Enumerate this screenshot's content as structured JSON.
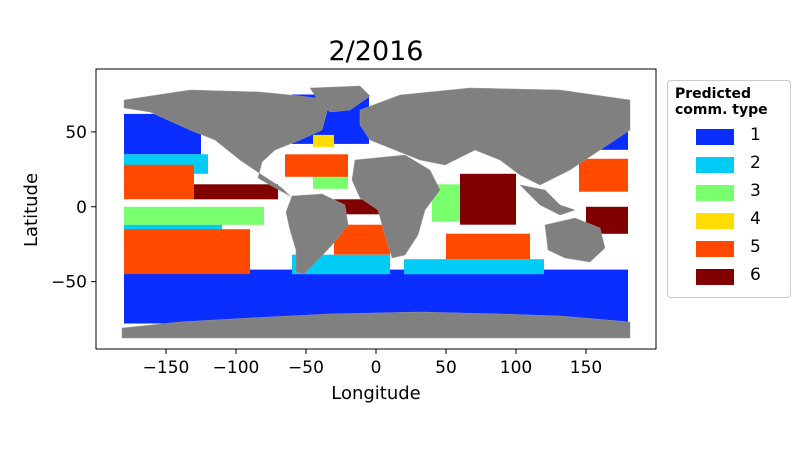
{
  "chart_data": {
    "type": "map-scatter",
    "title": "2/2016",
    "xlabel": "Longitude",
    "ylabel": "Latitude",
    "xlim": [
      -200,
      200
    ],
    "ylim": [
      -95,
      92
    ],
    "xticks": [
      -150,
      -100,
      -50,
      0,
      50,
      100,
      150
    ],
    "yticks": [
      -50,
      0,
      50
    ],
    "land_color": "#808080",
    "legend": {
      "title": "Predicted\ncomm. type",
      "placement": "right-outside",
      "items": [
        {
          "label": "1",
          "color": "#0a2eff"
        },
        {
          "label": "2",
          "color": "#00ccf5"
        },
        {
          "label": "3",
          "color": "#7aff6e"
        },
        {
          "label": "4",
          "color": "#ffdd00"
        },
        {
          "label": "5",
          "color": "#ff4a00"
        },
        {
          "label": "6",
          "color": "#800000"
        }
      ]
    },
    "regions": [
      {
        "type": "1",
        "lon": [
          -180,
          180
        ],
        "lat": [
          -78,
          -42
        ],
        "note": "southern ocean band"
      },
      {
        "type": "1",
        "lon": [
          -180,
          -125
        ],
        "lat": [
          35,
          62
        ]
      },
      {
        "type": "1",
        "lon": [
          140,
          180
        ],
        "lat": [
          38,
          60
        ]
      },
      {
        "type": "1",
        "lon": [
          -60,
          -5
        ],
        "lat": [
          42,
          75
        ]
      },
      {
        "type": "2",
        "lon": [
          -180,
          -110
        ],
        "lat": [
          -25,
          -12
        ]
      },
      {
        "type": "2",
        "lon": [
          -180,
          -120
        ],
        "lat": [
          22,
          35
        ]
      },
      {
        "type": "2",
        "lon": [
          -60,
          10
        ],
        "lat": [
          -45,
          -32
        ]
      },
      {
        "type": "2",
        "lon": [
          20,
          120
        ],
        "lat": [
          -45,
          -35
        ]
      },
      {
        "type": "3",
        "lon": [
          -180,
          -80
        ],
        "lat": [
          -12,
          0
        ]
      },
      {
        "type": "3",
        "lon": [
          -45,
          -20
        ],
        "lat": [
          12,
          28
        ]
      },
      {
        "type": "3",
        "lon": [
          40,
          60
        ],
        "lat": [
          -10,
          15
        ]
      },
      {
        "type": "4",
        "lon": [
          -45,
          -30
        ],
        "lat": [
          40,
          48
        ]
      },
      {
        "type": "5",
        "lon": [
          -180,
          -90
        ],
        "lat": [
          -45,
          -15
        ]
      },
      {
        "type": "5",
        "lon": [
          -180,
          -130
        ],
        "lat": [
          5,
          28
        ]
      },
      {
        "type": "5",
        "lon": [
          -65,
          -20
        ],
        "lat": [
          20,
          35
        ]
      },
      {
        "type": "5",
        "lon": [
          -30,
          10
        ],
        "lat": [
          -32,
          -12
        ]
      },
      {
        "type": "5",
        "lon": [
          50,
          110
        ],
        "lat": [
          -35,
          -18
        ]
      },
      {
        "type": "5",
        "lon": [
          145,
          180
        ],
        "lat": [
          10,
          32
        ]
      },
      {
        "type": "6",
        "lon": [
          -130,
          -70
        ],
        "lat": [
          5,
          15
        ]
      },
      {
        "type": "6",
        "lon": [
          -30,
          10
        ],
        "lat": [
          -5,
          5
        ]
      },
      {
        "type": "6",
        "lon": [
          60,
          100
        ],
        "lat": [
          -12,
          22
        ]
      },
      {
        "type": "6",
        "lon": [
          150,
          180
        ],
        "lat": [
          -18,
          0
        ]
      }
    ]
  }
}
